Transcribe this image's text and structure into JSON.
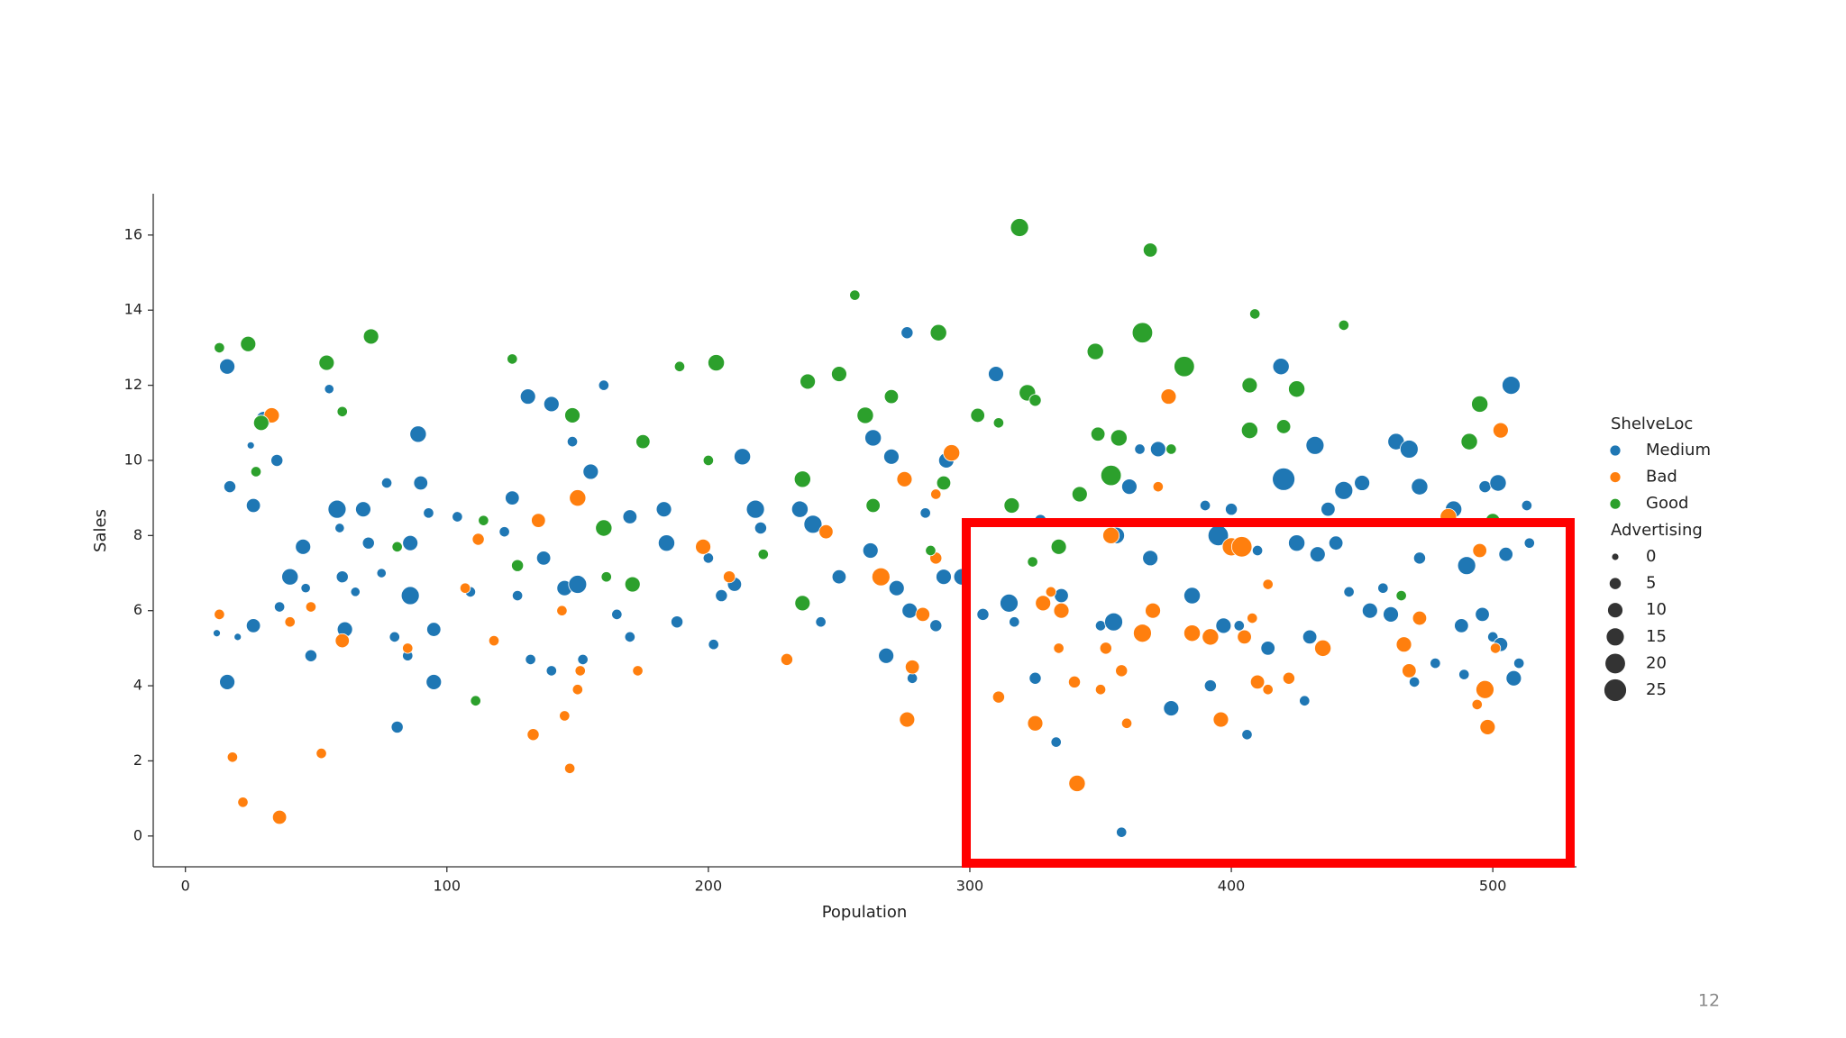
{
  "page_number": "12",
  "chart_data": {
    "type": "scatter",
    "xlabel": "Population",
    "ylabel": "Sales",
    "xlim": [
      -12.3,
      532
    ],
    "ylim": [
      -0.82,
      17.1
    ],
    "xticks": [
      0,
      100,
      200,
      300,
      400,
      500
    ],
    "yticks": [
      0,
      2,
      4,
      6,
      8,
      10,
      12,
      14,
      16
    ],
    "legend_title": "ShelveLoc",
    "size_legend": {
      "title": "Advertising",
      "values": [
        0,
        5,
        10,
        15,
        20,
        25
      ]
    },
    "series": [
      {
        "name": "Medium",
        "color": "#1f77b4",
        "x": [
          12,
          16,
          17,
          16,
          20,
          25,
          26,
          26,
          30,
          35,
          36,
          40,
          45,
          46,
          48,
          55,
          58,
          59,
          60,
          61,
          65,
          68,
          70,
          75,
          77,
          80,
          81,
          85,
          86,
          86,
          89,
          90,
          93,
          95,
          95,
          104,
          109,
          122,
          125,
          127,
          131,
          132,
          137,
          140,
          140,
          145,
          148,
          150,
          152,
          155,
          160,
          165,
          170,
          170,
          183,
          184,
          188,
          200,
          202,
          205,
          210,
          213,
          218,
          220,
          235,
          240,
          243,
          250,
          262,
          263,
          268,
          270,
          272,
          276,
          277,
          278,
          283,
          287,
          290,
          291,
          297,
          305,
          310,
          315,
          317,
          325,
          327,
          333,
          335,
          350,
          355,
          356,
          358,
          361,
          365,
          369,
          372,
          377,
          385,
          390,
          392,
          395,
          397,
          400,
          403,
          406,
          410,
          414,
          419,
          420,
          425,
          428,
          430,
          432,
          433,
          437,
          440,
          443,
          445,
          450,
          453,
          458,
          461,
          463,
          468,
          470,
          472,
          472,
          478,
          485,
          488,
          489,
          490,
          496,
          497,
          500,
          502,
          503,
          505,
          507,
          508,
          510,
          513,
          514
        ],
        "y": [
          5.4,
          12.5,
          9.3,
          4.1,
          5.3,
          10.4,
          5.6,
          8.8,
          11.1,
          10,
          6.1,
          6.9,
          7.7,
          6.6,
          4.8,
          11.9,
          8.7,
          8.2,
          6.9,
          5.5,
          6.5,
          8.7,
          7.8,
          7,
          9.4,
          5.3,
          2.9,
          4.8,
          6.4,
          7.8,
          10.7,
          9.4,
          8.6,
          5.5,
          4.1,
          8.5,
          6.5,
          8.1,
          9,
          6.4,
          11.7,
          4.7,
          7.4,
          11.5,
          4.4,
          6.6,
          10.5,
          6.7,
          4.7,
          9.7,
          12,
          5.9,
          8.5,
          5.3,
          8.7,
          7.8,
          5.7,
          7.4,
          5.1,
          6.4,
          6.7,
          10.1,
          8.7,
          8.2,
          8.7,
          8.3,
          5.7,
          6.9,
          7.6,
          10.6,
          4.8,
          10.1,
          6.6,
          13.4,
          6,
          4.2,
          8.6,
          5.6,
          6.9,
          10,
          6.9,
          5.9,
          12.3,
          6.2,
          5.7,
          4.2,
          8.4,
          2.5,
          6.4,
          5.6,
          5.7,
          8,
          0.1,
          9.3,
          10.3,
          7.4,
          10.3,
          3.4,
          6.4,
          8.8,
          4,
          8,
          5.6,
          8.7,
          5.6,
          2.7,
          7.6,
          5,
          12.5,
          9.5,
          7.8,
          3.6,
          5.3,
          10.4,
          7.5,
          8.7,
          7.8,
          9.2,
          6.5,
          9.4,
          6,
          6.6,
          5.9,
          10.5,
          10.3,
          4.1,
          7.4,
          9.3,
          4.6,
          8.7,
          5.6,
          4.3,
          7.2,
          5.9,
          9.3,
          5.3,
          9.4,
          5.1,
          7.5,
          12,
          4.2,
          4.6,
          8.8,
          7.8
        ],
        "sizes": [
          0,
          10,
          5,
          10,
          0,
          0,
          8,
          8,
          10,
          5,
          3,
          12,
          10,
          2,
          5,
          2,
          15,
          2,
          5,
          10,
          2,
          10,
          5,
          2,
          3,
          3,
          5,
          3,
          15,
          10,
          12,
          8,
          3,
          8,
          10,
          3,
          3,
          3,
          8,
          3,
          10,
          3,
          8,
          10,
          3,
          10,
          3,
          15,
          3,
          10,
          3,
          3,
          8,
          3,
          10,
          12,
          5,
          3,
          3,
          5,
          8,
          12,
          15,
          5,
          12,
          15,
          3,
          8,
          10,
          12,
          10,
          10,
          10,
          5,
          10,
          3,
          3,
          5,
          10,
          10,
          12,
          5,
          10,
          15,
          3,
          5,
          5,
          3,
          8,
          3,
          15,
          12,
          3,
          10,
          3,
          10,
          10,
          10,
          12,
          3,
          5,
          20,
          10,
          5,
          3,
          3,
          3,
          8,
          12,
          25,
          12,
          3,
          8,
          15,
          10,
          8,
          8,
          15,
          3,
          10,
          10,
          3,
          10,
          12,
          15,
          3,
          5,
          12,
          3,
          12,
          8,
          3,
          15,
          8,
          5,
          3,
          12,
          8,
          8,
          15,
          10,
          3,
          3,
          3
        ]
      },
      {
        "name": "Bad",
        "color": "#ff7f0e",
        "x": [
          13,
          18,
          22,
          33,
          36,
          40,
          48,
          52,
          60,
          85,
          107,
          112,
          118,
          133,
          135,
          144,
          145,
          147,
          150,
          151,
          150,
          173,
          198,
          208,
          230,
          245,
          266,
          275,
          276,
          278,
          282,
          287,
          287,
          293,
          311,
          325,
          328,
          331,
          335,
          334,
          340,
          341,
          350,
          352,
          354,
          358,
          360,
          366,
          370,
          372,
          376,
          385,
          392,
          396,
          400,
          404,
          405,
          408,
          410,
          414,
          414,
          422,
          435,
          466,
          468,
          472,
          494,
          495,
          497,
          498,
          501,
          503,
          483
        ],
        "y": [
          5.9,
          2.1,
          0.9,
          11.2,
          0.5,
          5.7,
          6.1,
          2.2,
          5.2,
          5,
          6.6,
          7.9,
          5.2,
          2.7,
          8.4,
          6,
          3.2,
          1.8,
          3.9,
          4.4,
          9,
          4.4,
          7.7,
          6.9,
          4.7,
          8.1,
          6.9,
          9.5,
          3.1,
          4.5,
          5.9,
          7.4,
          9.1,
          10.2,
          3.7,
          3,
          6.2,
          6.5,
          6,
          5,
          4.1,
          1.4,
          3.9,
          5,
          8,
          4.4,
          3,
          5.4,
          6,
          9.3,
          11.7,
          5.4,
          5.3,
          3.1,
          7.7,
          7.7,
          5.3,
          5.8,
          4.1,
          3.9,
          6.7,
          4.2,
          5,
          5.1,
          4.4,
          5.8,
          3.5,
          7.6,
          3.9,
          2.9,
          5,
          10.8,
          8.5
        ],
        "sizes": [
          3,
          3,
          3,
          10,
          8,
          3,
          3,
          3,
          8,
          3,
          3,
          5,
          3,
          5,
          8,
          3,
          3,
          3,
          3,
          3,
          12,
          3,
          10,
          5,
          5,
          8,
          15,
          10,
          10,
          8,
          8,
          5,
          3,
          12,
          5,
          10,
          10,
          3,
          10,
          3,
          5,
          12,
          3,
          5,
          12,
          5,
          3,
          15,
          10,
          3,
          10,
          12,
          12,
          10,
          15,
          20,
          8,
          3,
          8,
          3,
          3,
          5,
          12,
          10,
          8,
          8,
          3,
          8,
          15,
          10,
          3,
          10,
          12
        ]
      },
      {
        "name": "Good",
        "color": "#2ca02c",
        "x": [
          13,
          24,
          27,
          29,
          54,
          60,
          71,
          81,
          111,
          114,
          125,
          127,
          148,
          160,
          161,
          171,
          175,
          189,
          200,
          203,
          221,
          236,
          238,
          236,
          250,
          256,
          260,
          263,
          270,
          285,
          288,
          290,
          303,
          311,
          316,
          319,
          322,
          325,
          324,
          334,
          342,
          348,
          349,
          354,
          357,
          366,
          369,
          377,
          382,
          407,
          407,
          409,
          420,
          425,
          443,
          465,
          491,
          495,
          500
        ],
        "y": [
          13,
          13.1,
          9.7,
          11,
          12.6,
          11.3,
          13.3,
          7.7,
          3.6,
          8.4,
          12.7,
          7.2,
          11.2,
          8.2,
          6.9,
          6.7,
          10.5,
          12.5,
          10,
          12.6,
          7.5,
          9.5,
          12.1,
          6.2,
          12.3,
          14.4,
          11.2,
          8.8,
          11.7,
          7.6,
          13.4,
          9.4,
          11.2,
          11,
          8.8,
          16.2,
          11.8,
          11.6,
          7.3,
          7.7,
          9.1,
          12.9,
          10.7,
          9.6,
          10.6,
          13.4,
          15.6,
          10.3,
          12.5,
          12,
          10.8,
          13.9,
          10.9,
          11.9,
          13.6,
          6.4,
          10.5,
          11.5,
          8.4
        ],
        "sizes": [
          3,
          10,
          3,
          10,
          10,
          3,
          10,
          3,
          3,
          3,
          3,
          5,
          10,
          12,
          3,
          10,
          8,
          3,
          3,
          12,
          3,
          12,
          10,
          10,
          10,
          3,
          12,
          8,
          8,
          3,
          12,
          8,
          8,
          3,
          10,
          15,
          12,
          5,
          3,
          10,
          10,
          12,
          8,
          20,
          12,
          20,
          8,
          3,
          20,
          10,
          12,
          3,
          8,
          12,
          3,
          3,
          12,
          12,
          8
        ]
      }
    ]
  }
}
